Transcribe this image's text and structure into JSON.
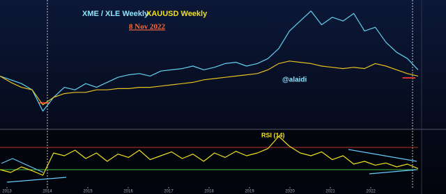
{
  "chart_data": [
    {
      "type": "line",
      "subtitle": "8 Nov 2022",
      "annotation": "@alaidi",
      "series": [
        {
          "name": "XME / XLE Weekly",
          "color": "#5fd3f0",
          "values": [
            42,
            39,
            36,
            31,
            14,
            25,
            33,
            31,
            36,
            33,
            37,
            41,
            43,
            44,
            42,
            46,
            47,
            48,
            50,
            47,
            49,
            52,
            53,
            50,
            52,
            56,
            64,
            78,
            86,
            94,
            83,
            89,
            86,
            92,
            78,
            81,
            69,
            61,
            56,
            47
          ]
        },
        {
          "name": "XAUUSD Weekly",
          "color": "#e8c020",
          "values": [
            42,
            37,
            33,
            31,
            19,
            25,
            28,
            29,
            29,
            31,
            31,
            32,
            32,
            33,
            33,
            34,
            35,
            36,
            37,
            39,
            40,
            41,
            42,
            43,
            44,
            47,
            52,
            54,
            53,
            52,
            50,
            49,
            48,
            49,
            48,
            52,
            50,
            47,
            44,
            42
          ]
        }
      ],
      "ylim": [
        0,
        100
      ]
    },
    {
      "type": "line",
      "title": "RSI (14)",
      "series": [
        {
          "color": "#f0e020",
          "values": [
            30,
            25,
            35,
            28,
            20,
            60,
            55,
            65,
            50,
            60,
            45,
            58,
            52,
            65,
            48,
            55,
            62,
            50,
            58,
            45,
            60,
            52,
            63,
            55,
            60,
            68,
            90,
            72,
            60,
            55,
            62,
            48,
            55,
            40,
            45,
            38,
            42,
            35,
            40,
            32
          ]
        }
      ],
      "levels": [
        {
          "value": 70,
          "color": "#b8342a"
        },
        {
          "value": 30,
          "color": "#3ec040"
        }
      ],
      "ylim": [
        0,
        100
      ],
      "xticks": [
        {
          "value": 0.65,
          "label": "2013"
        },
        {
          "value": 4.42,
          "label": "2014"
        },
        {
          "value": 8.19,
          "label": "2015"
        },
        {
          "value": 11.96,
          "label": "2016"
        },
        {
          "value": 15.73,
          "label": "2017"
        },
        {
          "value": 19.5,
          "label": "2018"
        },
        {
          "value": 23.27,
          "label": "2019"
        },
        {
          "value": 27.04,
          "label": "2020"
        },
        {
          "value": 30.81,
          "label": "2021"
        },
        {
          "value": 34.58,
          "label": "2022"
        }
      ]
    }
  ]
}
